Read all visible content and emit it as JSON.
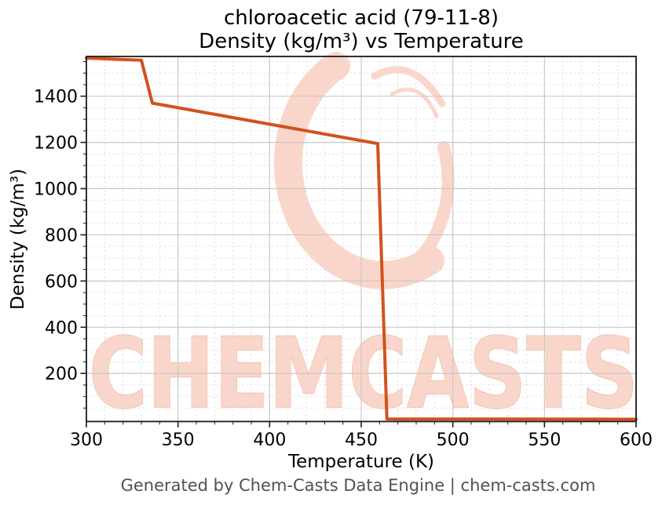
{
  "title": {
    "line1": "chloroacetic acid (79-11-8)",
    "line2": "Density (kg/m³) vs Temperature"
  },
  "axes": {
    "x_label": "Temperature (K)",
    "y_label": "Density (kg/m³)"
  },
  "footer": {
    "text": "Generated by Chem-Casts Data Engine | chem-casts.com",
    "color": "#515151"
  },
  "watermark": {
    "text": "CHEMCASTS",
    "fill_color": "#fad6ca",
    "stroke_color": "#f3b5a1",
    "logo": "chemcasts-c-swirl-logo"
  },
  "chart_data": {
    "type": "line",
    "title": "chloroacetic acid (79-11-8) — Density (kg/m³) vs Temperature",
    "xlabel": "Temperature (K)",
    "ylabel": "Density (kg/m³)",
    "x_range": [
      300,
      600
    ],
    "y_range": [
      -8,
      1572
    ],
    "x_major_ticks": [
      300,
      350,
      400,
      450,
      500,
      550,
      600
    ],
    "x_minor_tick_step": 10,
    "y_major_ticks": [
      200,
      400,
      600,
      800,
      1000,
      1200,
      1400
    ],
    "y_minor_tick_step": 50,
    "grid": "major-solid, minor-dashed",
    "legend": "none",
    "series": [
      {
        "name": "Density (kg/m³)",
        "color": "#d2521e",
        "line_width": 4,
        "points": [
          [
            300,
            1565
          ],
          [
            330,
            1556
          ],
          [
            336,
            1370
          ],
          [
            459,
            1195
          ],
          [
            464,
            3
          ],
          [
            600,
            2
          ]
        ]
      }
    ]
  }
}
